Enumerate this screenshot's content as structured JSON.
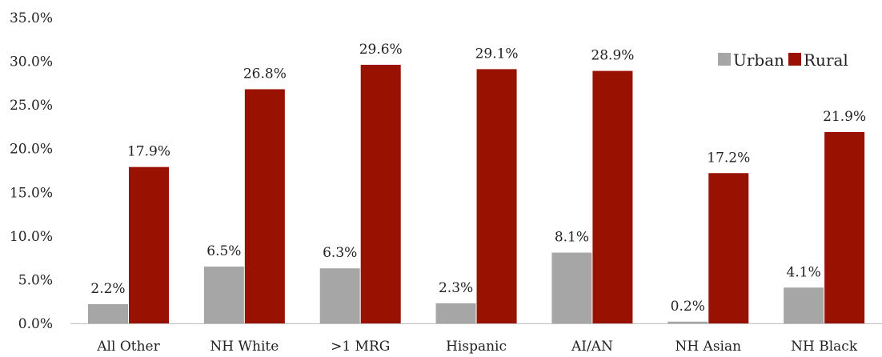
{
  "chart_data": {
    "type": "bar",
    "title": "",
    "xlabel": "",
    "ylabel": "",
    "categories": [
      "All Other",
      "NH White",
      ">1 MRG",
      "Hispanic",
      "AI/AN",
      "NH Asian",
      "NH Black"
    ],
    "series": [
      {
        "name": "Urban",
        "color": "#A6A6A6",
        "values": [
          2.2,
          6.5,
          6.3,
          2.3,
          8.1,
          0.2,
          4.1
        ],
        "labels": [
          "2.2%",
          "6.5%",
          "6.3%",
          "2.3%",
          "8.1%",
          "0.2%",
          "4.1%"
        ]
      },
      {
        "name": "Rural",
        "color": "#991100",
        "values": [
          17.9,
          26.8,
          29.6,
          29.1,
          28.9,
          17.2,
          21.9
        ],
        "labels": [
          "17.9%",
          "26.8%",
          "29.6%",
          "29.1%",
          "28.9%",
          "17.2%",
          "21.9%"
        ]
      }
    ],
    "ylim": [
      0,
      35
    ],
    "yticks": [
      "0.0%",
      "5.0%",
      "10.0%",
      "15.0%",
      "20.0%",
      "25.0%",
      "30.0%",
      "35.0%"
    ],
    "grid": false,
    "legend": "top-right",
    "axis_color": "#BFBFBF"
  }
}
